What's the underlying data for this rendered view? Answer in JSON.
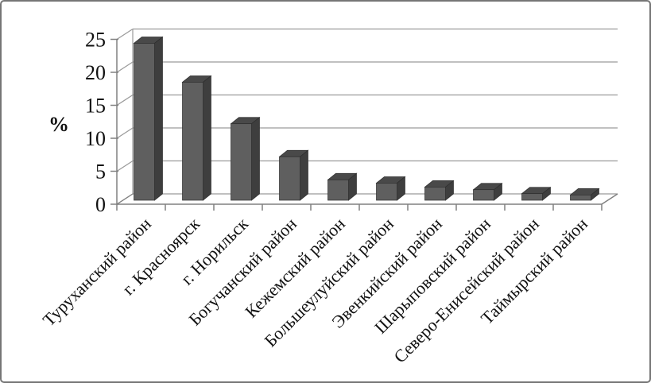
{
  "window": {
    "background": "#ffffff",
    "border_color": "#767676"
  },
  "chart_data": {
    "type": "bar",
    "style": "3d-column",
    "title": "",
    "xlabel": "",
    "ylabel": "%",
    "categories": [
      "Туруханский  район",
      "г. Красноярск",
      "г. Норильск",
      "Богучанский район",
      "Кежемский район",
      "Большеулуйский район",
      "Эвенкийский район",
      "Шарыповский район",
      "Северо-Енисейский район",
      "Таймырский район"
    ],
    "values": [
      23.8,
      17.9,
      11.6,
      6.6,
      3.1,
      2.6,
      2.0,
      1.6,
      1.0,
      0.8
    ],
    "ylim": [
      0,
      25
    ],
    "yticks": [
      0,
      5,
      10,
      15,
      20,
      25
    ],
    "grid": true,
    "legend": "none",
    "x_labels_rotation_deg": 45,
    "colors": {
      "bar_front": "#5f5f5f",
      "bar_top": "#494949",
      "bar_side": "#3e3e3e",
      "bar_edge": "#2e2e2e",
      "gridline": "#9b9b9b",
      "axis": "#808080",
      "text": "#111111"
    }
  }
}
